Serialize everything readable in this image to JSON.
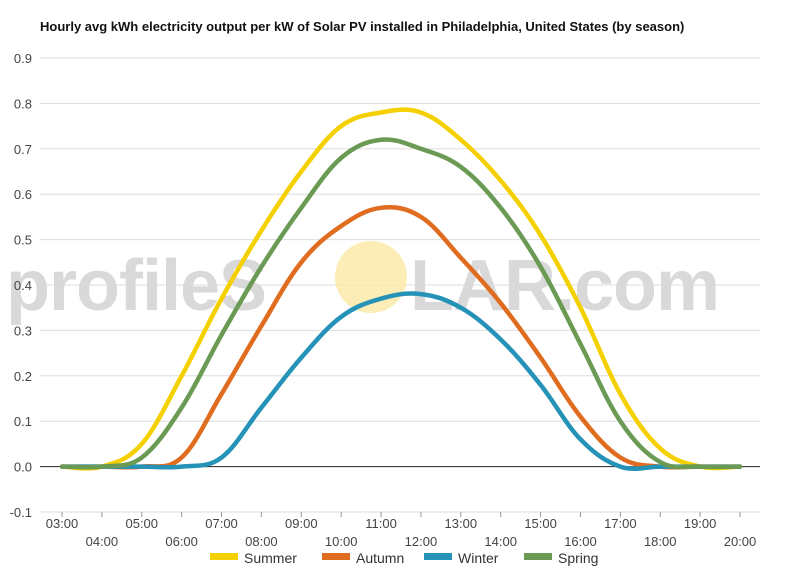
{
  "chart_data": {
    "type": "line",
    "title": "Hourly avg kWh electricity output per kW of Solar PV installed in Philadelphia, United States (by season)",
    "xlabel": "",
    "ylabel": "",
    "categories": [
      "03:00",
      "04:00",
      "05:00",
      "06:00",
      "07:00",
      "08:00",
      "09:00",
      "10:00",
      "11:00",
      "12:00",
      "13:00",
      "14:00",
      "15:00",
      "16:00",
      "17:00",
      "18:00",
      "19:00",
      "20:00"
    ],
    "ylim": [
      -0.1,
      0.9
    ],
    "yticks": [
      "-0.1",
      "0.0",
      "0.1",
      "0.2",
      "0.3",
      "0.4",
      "0.5",
      "0.6",
      "0.7",
      "0.8",
      "0.9"
    ],
    "grid": true,
    "legend_position": "bottom",
    "series": [
      {
        "name": "Summer",
        "color": "#f5d000",
        "values": [
          0.0,
          0.0,
          0.05,
          0.2,
          0.37,
          0.52,
          0.65,
          0.75,
          0.78,
          0.78,
          0.72,
          0.63,
          0.51,
          0.35,
          0.16,
          0.04,
          0.0,
          0.0
        ]
      },
      {
        "name": "Autumn",
        "color": "#e06c1f",
        "values": [
          0.0,
          0.0,
          0.0,
          0.02,
          0.16,
          0.31,
          0.45,
          0.53,
          0.57,
          0.55,
          0.46,
          0.36,
          0.24,
          0.11,
          0.02,
          0.0,
          0.0,
          0.0
        ]
      },
      {
        "name": "Winter",
        "color": "#2592b8",
        "values": [
          0.0,
          0.0,
          0.0,
          0.0,
          0.02,
          0.13,
          0.24,
          0.33,
          0.37,
          0.38,
          0.35,
          0.28,
          0.18,
          0.06,
          0.0,
          0.0,
          0.0,
          0.0
        ]
      },
      {
        "name": "Spring",
        "color": "#6a9a53",
        "values": [
          0.0,
          0.0,
          0.02,
          0.13,
          0.29,
          0.44,
          0.57,
          0.68,
          0.72,
          0.7,
          0.66,
          0.57,
          0.44,
          0.27,
          0.1,
          0.01,
          0.0,
          0.0
        ]
      }
    ]
  },
  "watermark": {
    "text_left": "profileS",
    "text_right": "LAR.com",
    "sun_color": "#fbe9a8"
  },
  "colors": {
    "grid": "#dddddd",
    "zero_line": "#222222",
    "tick_text": "#444444"
  }
}
